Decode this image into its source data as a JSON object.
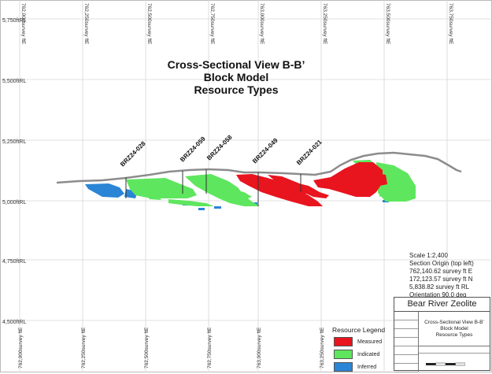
{
  "title": {
    "line1": "Cross-Sectional View B-B’",
    "line2": "Block Model",
    "line3": "Resource Types"
  },
  "grid": {
    "easting_labels": [
      "762,000survey ftE",
      "762,250survey ftE",
      "762,500survey ftE",
      "762,750survey ftE",
      "763,000survey ftE",
      "763,250survey ftE",
      "763,500survey ftE",
      "763,750survey ftE"
    ],
    "elevation_labels": [
      "5,750ftRL",
      "5,500ftRL",
      "5,250ftRL",
      "5,000ftRL",
      "4,750ftRL",
      "4,500ftRL"
    ]
  },
  "drillholes": [
    "BRZ24-028",
    "BRZ24-059",
    "BRZ24-058",
    "BRZ24-049",
    "BRZ24-021"
  ],
  "scale_info": {
    "scale": "Scale 1:2,400",
    "origin": "Section Origin (top left)",
    "easting": "762,140.62 survey ft E",
    "northing": "172,123.57 survey ft N",
    "elevation": "5,838.82 survey ft RL",
    "orientation": "Orientation 90.0 deg"
  },
  "legend": {
    "title": "Resource Legend",
    "items": [
      {
        "label": "Measured",
        "color": "#e8141e"
      },
      {
        "label": "Indicated",
        "color": "#5ee65e"
      },
      {
        "label": "Inferred",
        "color": "#2a85d6"
      }
    ]
  },
  "title_block": {
    "company": "Bear River Zeolite",
    "line1": "Cross-Sectional View B-B’",
    "line2": "Block Model",
    "line3": "Resource Types"
  },
  "colors": {
    "topography": "#8c8c8c",
    "drillhole": "#333333",
    "grid": "#d6d6d6"
  }
}
